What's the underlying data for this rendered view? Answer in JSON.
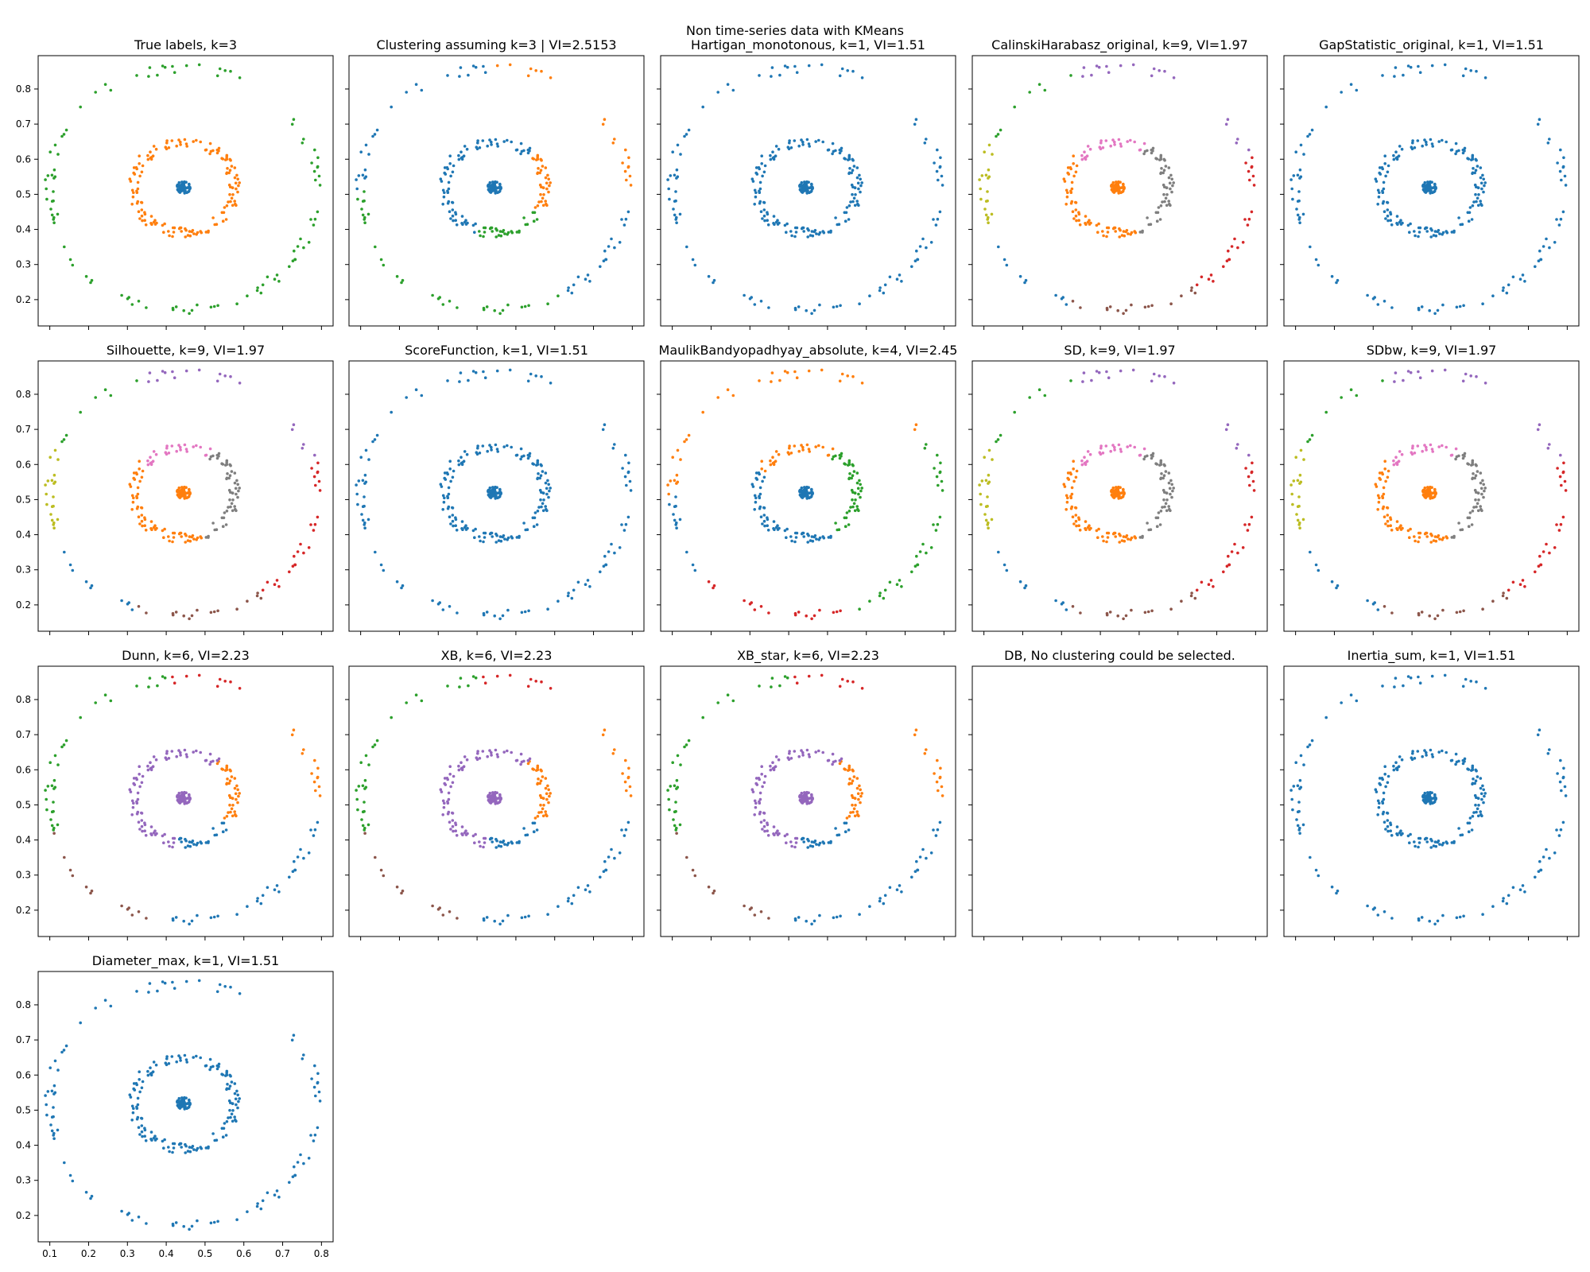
{
  "figure": {
    "suptitle": "Non time-series data with KMeans"
  },
  "palette": [
    "#1f77b4",
    "#ff7f0e",
    "#2ca02c",
    "#d62728",
    "#9467bd",
    "#8c564b",
    "#e377c2",
    "#7f7f7f",
    "#bcbd22"
  ],
  "axes": {
    "xlim": [
      0.07,
      0.83
    ],
    "ylim": [
      0.125,
      0.895
    ],
    "x_ticks": [
      0.1,
      0.2,
      0.3,
      0.4,
      0.5,
      0.6,
      0.7,
      0.8
    ],
    "y_ticks": [
      0.2,
      0.3,
      0.4,
      0.5,
      0.6,
      0.7,
      0.8
    ],
    "x_tick_labels": [
      "0.1",
      "0.2",
      "0.3",
      "0.4",
      "0.5",
      "0.6",
      "0.7",
      "0.8"
    ],
    "y_tick_labels": [
      "0.2",
      "0.3",
      "0.4",
      "0.5",
      "0.6",
      "0.7",
      "0.8"
    ]
  },
  "chart_data": {
    "type": "scatter",
    "dataset": {
      "groups": [
        {
          "name": "core",
          "center": [
            0.445,
            0.52
          ],
          "radius": 0.018
        },
        {
          "name": "inner ring",
          "center": [
            0.445,
            0.52
          ],
          "radius": 0.13
        },
        {
          "name": "outer ring",
          "center": [
            0.445,
            0.515
          ],
          "radius": 0.345
        }
      ]
    },
    "panels": [
      {
        "title": "True labels, k=3",
        "k": 3,
        "vi": null,
        "regions": [
          {
            "group": "core",
            "color": "#1f77b4"
          },
          {
            "group": "inner ring",
            "color": "#ff7f0e"
          },
          {
            "group": "outer ring",
            "color": "#2ca02c"
          }
        ]
      },
      {
        "title": "Clustering assuming k=3 | VI=2.5153",
        "k": 3,
        "vi": 2.5153,
        "regions": [
          {
            "group": "core",
            "color": "#1f77b4"
          },
          {
            "group": "inner ring",
            "from": 130,
            "to": 330,
            "color": "#1f77b4"
          },
          {
            "group": "inner ring",
            "from": 330,
            "to": 400,
            "color": "#ff7f0e"
          },
          {
            "group": "inner ring",
            "from": 250,
            "to": 330,
            "color": "#2ca02c"
          },
          {
            "group": "outer ring",
            "from": -60,
            "to": 90,
            "color": "#ff7f0e"
          },
          {
            "group": "outer ring",
            "from": 90,
            "to": 180,
            "color": "#1f77b4"
          },
          {
            "group": "outer ring",
            "from": 180,
            "to": 300,
            "color": "#2ca02c"
          }
        ]
      },
      {
        "title": "Hartigan_monotonous, k=1, VI=1.51",
        "k": 1,
        "vi": 1.51,
        "regions": [
          {
            "group": "core",
            "color": "#1f77b4"
          },
          {
            "group": "inner ring",
            "color": "#1f77b4"
          },
          {
            "group": "outer ring",
            "color": "#1f77b4"
          }
        ]
      },
      {
        "title": "CalinskiHarabasz_original, k=9, VI=1.97",
        "k": 9,
        "vi": 1.97,
        "regions": [
          {
            "group": "core",
            "color": "#ff7f0e"
          },
          {
            "group": "inner ring",
            "from": 60,
            "to": 140,
            "color": "#e377c2"
          },
          {
            "group": "inner ring",
            "from": 140,
            "to": 290,
            "color": "#ff7f0e"
          },
          {
            "group": "inner ring",
            "from": 290,
            "to": 420,
            "color": "#7f7f7f"
          },
          {
            "group": "outer ring",
            "from": 55,
            "to": 110,
            "color": "#9467bd"
          },
          {
            "group": "outer ring",
            "from": 110,
            "to": 155,
            "color": "#2ca02c"
          },
          {
            "group": "outer ring",
            "from": 155,
            "to": 200,
            "color": "#bcbd22"
          },
          {
            "group": "outer ring",
            "from": 200,
            "to": 250,
            "color": "#1f77b4"
          },
          {
            "group": "outer ring",
            "from": 250,
            "to": 305,
            "color": "#8c564b"
          },
          {
            "group": "outer ring",
            "from": 305,
            "to": 375,
            "color": "#d62728"
          },
          {
            "group": "outer ring",
            "from": 15,
            "to": 55,
            "color": "#9467bd"
          }
        ]
      },
      {
        "title": "GapStatistic_original, k=1, VI=1.51",
        "k": 1,
        "vi": 1.51,
        "regions": [
          {
            "group": "core",
            "color": "#1f77b4"
          },
          {
            "group": "inner ring",
            "color": "#1f77b4"
          },
          {
            "group": "outer ring",
            "color": "#1f77b4"
          }
        ]
      },
      {
        "title": "Silhouette, k=9, VI=1.97",
        "k": 9,
        "vi": 1.97,
        "regions": [
          {
            "group": "core",
            "color": "#ff7f0e"
          },
          {
            "group": "inner ring",
            "from": 60,
            "to": 140,
            "color": "#e377c2"
          },
          {
            "group": "inner ring",
            "from": 140,
            "to": 290,
            "color": "#ff7f0e"
          },
          {
            "group": "inner ring",
            "from": 290,
            "to": 420,
            "color": "#7f7f7f"
          },
          {
            "group": "outer ring",
            "from": 55,
            "to": 110,
            "color": "#9467bd"
          },
          {
            "group": "outer ring",
            "from": 110,
            "to": 155,
            "color": "#2ca02c"
          },
          {
            "group": "outer ring",
            "from": 155,
            "to": 200,
            "color": "#bcbd22"
          },
          {
            "group": "outer ring",
            "from": 200,
            "to": 250,
            "color": "#1f77b4"
          },
          {
            "group": "outer ring",
            "from": 250,
            "to": 305,
            "color": "#8c564b"
          },
          {
            "group": "outer ring",
            "from": 305,
            "to": 375,
            "color": "#d62728"
          },
          {
            "group": "outer ring",
            "from": 15,
            "to": 55,
            "color": "#9467bd"
          }
        ]
      },
      {
        "title": "ScoreFunction, k=1, VI=1.51",
        "k": 1,
        "vi": 1.51,
        "regions": [
          {
            "group": "core",
            "color": "#1f77b4"
          },
          {
            "group": "inner ring",
            "color": "#1f77b4"
          },
          {
            "group": "outer ring",
            "color": "#1f77b4"
          }
        ]
      },
      {
        "title": "MaulikBandyopadhyay_absolute, k=4, VI=2.45",
        "k": 4,
        "vi": 2.45,
        "regions": [
          {
            "group": "core",
            "color": "#1f77b4"
          },
          {
            "group": "inner ring",
            "from": 60,
            "to": 150,
            "color": "#ff7f0e"
          },
          {
            "group": "inner ring",
            "from": 150,
            "to": 300,
            "color": "#1f77b4"
          },
          {
            "group": "inner ring",
            "from": 300,
            "to": 420,
            "color": "#2ca02c"
          },
          {
            "group": "outer ring",
            "from": 30,
            "to": 180,
            "color": "#ff7f0e"
          },
          {
            "group": "outer ring",
            "from": 180,
            "to": 220,
            "color": "#1f77b4"
          },
          {
            "group": "outer ring",
            "from": 220,
            "to": 290,
            "color": "#d62728"
          },
          {
            "group": "outer ring",
            "from": 290,
            "to": 390,
            "color": "#2ca02c"
          }
        ]
      },
      {
        "title": "SD, k=9, VI=1.97",
        "k": 9,
        "vi": 1.97,
        "regions": [
          {
            "group": "core",
            "color": "#ff7f0e"
          },
          {
            "group": "inner ring",
            "from": 60,
            "to": 140,
            "color": "#e377c2"
          },
          {
            "group": "inner ring",
            "from": 140,
            "to": 290,
            "color": "#ff7f0e"
          },
          {
            "group": "inner ring",
            "from": 290,
            "to": 420,
            "color": "#7f7f7f"
          },
          {
            "group": "outer ring",
            "from": 55,
            "to": 110,
            "color": "#9467bd"
          },
          {
            "group": "outer ring",
            "from": 110,
            "to": 155,
            "color": "#2ca02c"
          },
          {
            "group": "outer ring",
            "from": 155,
            "to": 200,
            "color": "#bcbd22"
          },
          {
            "group": "outer ring",
            "from": 200,
            "to": 250,
            "color": "#1f77b4"
          },
          {
            "group": "outer ring",
            "from": 250,
            "to": 305,
            "color": "#8c564b"
          },
          {
            "group": "outer ring",
            "from": 305,
            "to": 375,
            "color": "#d62728"
          },
          {
            "group": "outer ring",
            "from": 15,
            "to": 55,
            "color": "#9467bd"
          }
        ]
      },
      {
        "title": "SDbw, k=9, VI=1.97",
        "k": 9,
        "vi": 1.97,
        "regions": [
          {
            "group": "core",
            "color": "#ff7f0e"
          },
          {
            "group": "inner ring",
            "from": 60,
            "to": 140,
            "color": "#e377c2"
          },
          {
            "group": "inner ring",
            "from": 140,
            "to": 290,
            "color": "#ff7f0e"
          },
          {
            "group": "inner ring",
            "from": 290,
            "to": 420,
            "color": "#7f7f7f"
          },
          {
            "group": "outer ring",
            "from": 55,
            "to": 110,
            "color": "#9467bd"
          },
          {
            "group": "outer ring",
            "from": 110,
            "to": 155,
            "color": "#2ca02c"
          },
          {
            "group": "outer ring",
            "from": 155,
            "to": 200,
            "color": "#bcbd22"
          },
          {
            "group": "outer ring",
            "from": 200,
            "to": 250,
            "color": "#1f77b4"
          },
          {
            "group": "outer ring",
            "from": 250,
            "to": 305,
            "color": "#8c564b"
          },
          {
            "group": "outer ring",
            "from": 305,
            "to": 375,
            "color": "#d62728"
          },
          {
            "group": "outer ring",
            "from": 15,
            "to": 55,
            "color": "#9467bd"
          }
        ]
      },
      {
        "title": "Dunn, k=6, VI=2.23",
        "k": 6,
        "vi": 2.23,
        "regions": [
          {
            "group": "core",
            "color": "#9467bd"
          },
          {
            "group": "inner ring",
            "from": 50,
            "to": 260,
            "color": "#9467bd"
          },
          {
            "group": "inner ring",
            "from": 260,
            "to": 330,
            "color": "#1f77b4"
          },
          {
            "group": "inner ring",
            "from": 330,
            "to": 410,
            "color": "#ff7f0e"
          },
          {
            "group": "outer ring",
            "from": 0,
            "to": 50,
            "color": "#ff7f0e"
          },
          {
            "group": "outer ring",
            "from": 50,
            "to": 95,
            "color": "#d62728"
          },
          {
            "group": "outer ring",
            "from": 95,
            "to": 195,
            "color": "#2ca02c"
          },
          {
            "group": "outer ring",
            "from": 195,
            "to": 265,
            "color": "#8c564b"
          },
          {
            "group": "outer ring",
            "from": 265,
            "to": 360,
            "color": "#1f77b4"
          }
        ]
      },
      {
        "title": "XB, k=6, VI=2.23",
        "k": 6,
        "vi": 2.23,
        "regions": [
          {
            "group": "core",
            "color": "#9467bd"
          },
          {
            "group": "inner ring",
            "from": 50,
            "to": 260,
            "color": "#9467bd"
          },
          {
            "group": "inner ring",
            "from": 260,
            "to": 330,
            "color": "#1f77b4"
          },
          {
            "group": "inner ring",
            "from": 330,
            "to": 410,
            "color": "#ff7f0e"
          },
          {
            "group": "outer ring",
            "from": 0,
            "to": 50,
            "color": "#ff7f0e"
          },
          {
            "group": "outer ring",
            "from": 50,
            "to": 95,
            "color": "#d62728"
          },
          {
            "group": "outer ring",
            "from": 95,
            "to": 195,
            "color": "#2ca02c"
          },
          {
            "group": "outer ring",
            "from": 195,
            "to": 265,
            "color": "#8c564b"
          },
          {
            "group": "outer ring",
            "from": 265,
            "to": 360,
            "color": "#1f77b4"
          }
        ]
      },
      {
        "title": "XB_star, k=6, VI=2.23",
        "k": 6,
        "vi": 2.23,
        "regions": [
          {
            "group": "core",
            "color": "#9467bd"
          },
          {
            "group": "inner ring",
            "from": 50,
            "to": 260,
            "color": "#9467bd"
          },
          {
            "group": "inner ring",
            "from": 260,
            "to": 330,
            "color": "#1f77b4"
          },
          {
            "group": "inner ring",
            "from": 330,
            "to": 410,
            "color": "#ff7f0e"
          },
          {
            "group": "outer ring",
            "from": 0,
            "to": 50,
            "color": "#ff7f0e"
          },
          {
            "group": "outer ring",
            "from": 50,
            "to": 95,
            "color": "#d62728"
          },
          {
            "group": "outer ring",
            "from": 95,
            "to": 195,
            "color": "#2ca02c"
          },
          {
            "group": "outer ring",
            "from": 195,
            "to": 265,
            "color": "#8c564b"
          },
          {
            "group": "outer ring",
            "from": 265,
            "to": 360,
            "color": "#1f77b4"
          }
        ]
      },
      {
        "title": "DB, No clustering could be selected.",
        "k": null,
        "vi": null,
        "regions": []
      },
      {
        "title": "Inertia_sum, k=1, VI=1.51",
        "k": 1,
        "vi": 1.51,
        "regions": [
          {
            "group": "core",
            "color": "#1f77b4"
          },
          {
            "group": "inner ring",
            "color": "#1f77b4"
          },
          {
            "group": "outer ring",
            "color": "#1f77b4"
          }
        ]
      },
      {
        "title": "Diameter_max, k=1, VI=1.51",
        "k": 1,
        "vi": 1.51,
        "regions": [
          {
            "group": "core",
            "color": "#1f77b4"
          },
          {
            "group": "inner ring",
            "color": "#1f77b4"
          },
          {
            "group": "outer ring",
            "color": "#1f77b4"
          }
        ]
      }
    ]
  }
}
